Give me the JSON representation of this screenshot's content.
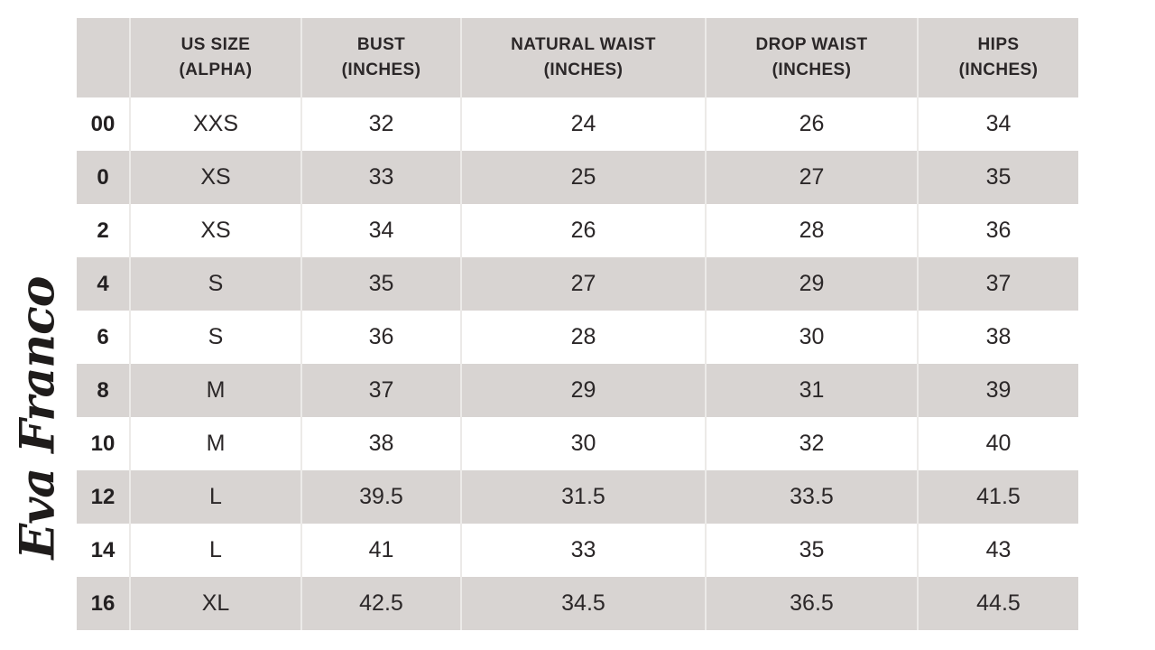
{
  "brand": {
    "logo_text": "Eva Franco"
  },
  "colors": {
    "header_bg": "#d8d4d2",
    "row_alt_bg": "#d8d4d2",
    "row_bg": "#ffffff",
    "separator": "#eceae8",
    "text": "#2b2728"
  },
  "chart_data": {
    "type": "table",
    "title": "Eva Franco size chart",
    "columns": [
      {
        "key": "us_size",
        "label": ""
      },
      {
        "key": "alpha",
        "label": "US SIZE\n(ALPHA)"
      },
      {
        "key": "bust",
        "label": "BUST\n(INCHES)"
      },
      {
        "key": "natural_waist",
        "label": "NATURAL WAIST\n(INCHES)"
      },
      {
        "key": "drop_waist",
        "label": "DROP WAIST\n(INCHES)"
      },
      {
        "key": "hips",
        "label": "HIPS\n(INCHES)"
      }
    ],
    "rows": [
      [
        "00",
        "XXS",
        "32",
        "24",
        "26",
        "34"
      ],
      [
        "0",
        "XS",
        "33",
        "25",
        "27",
        "35"
      ],
      [
        "2",
        "XS",
        "34",
        "26",
        "28",
        "36"
      ],
      [
        "4",
        "S",
        "35",
        "27",
        "29",
        "37"
      ],
      [
        "6",
        "S",
        "36",
        "28",
        "30",
        "38"
      ],
      [
        "8",
        "M",
        "37",
        "29",
        "31",
        "39"
      ],
      [
        "10",
        "M",
        "38",
        "30",
        "32",
        "40"
      ],
      [
        "12",
        "L",
        "39.5",
        "31.5",
        "33.5",
        "41.5"
      ],
      [
        "14",
        "L",
        "41",
        "33",
        "35",
        "43"
      ],
      [
        "16",
        "XL",
        "42.5",
        "34.5",
        "36.5",
        "44.5"
      ]
    ]
  }
}
